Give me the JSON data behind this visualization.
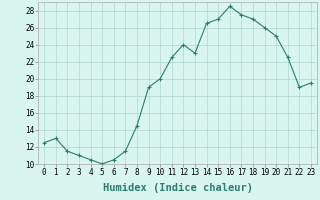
{
  "x": [
    0,
    1,
    2,
    3,
    4,
    5,
    6,
    7,
    8,
    9,
    10,
    11,
    12,
    13,
    14,
    15,
    16,
    17,
    18,
    19,
    20,
    21,
    22,
    23
  ],
  "y": [
    12.5,
    13.0,
    11.5,
    11.0,
    10.5,
    10.0,
    10.5,
    11.5,
    14.5,
    19.0,
    20.0,
    22.5,
    24.0,
    23.0,
    26.5,
    27.0,
    28.5,
    27.5,
    27.0,
    26.0,
    25.0,
    22.5,
    19.0,
    19.5
  ],
  "line_color": "#2d7d6e",
  "marker": "+",
  "bg_color": "#d8f5f0",
  "grid_color": "#b0d8d0",
  "xlabel": "Humidex (Indice chaleur)",
  "xlim": [
    -0.5,
    23.5
  ],
  "ylim": [
    10,
    29
  ],
  "yticks": [
    10,
    12,
    14,
    16,
    18,
    20,
    22,
    24,
    26,
    28
  ],
  "xticks": [
    0,
    1,
    2,
    3,
    4,
    5,
    6,
    7,
    8,
    9,
    10,
    11,
    12,
    13,
    14,
    15,
    16,
    17,
    18,
    19,
    20,
    21,
    22,
    23
  ],
  "tick_label_fontsize": 5.5,
  "xlabel_fontsize": 7.5
}
